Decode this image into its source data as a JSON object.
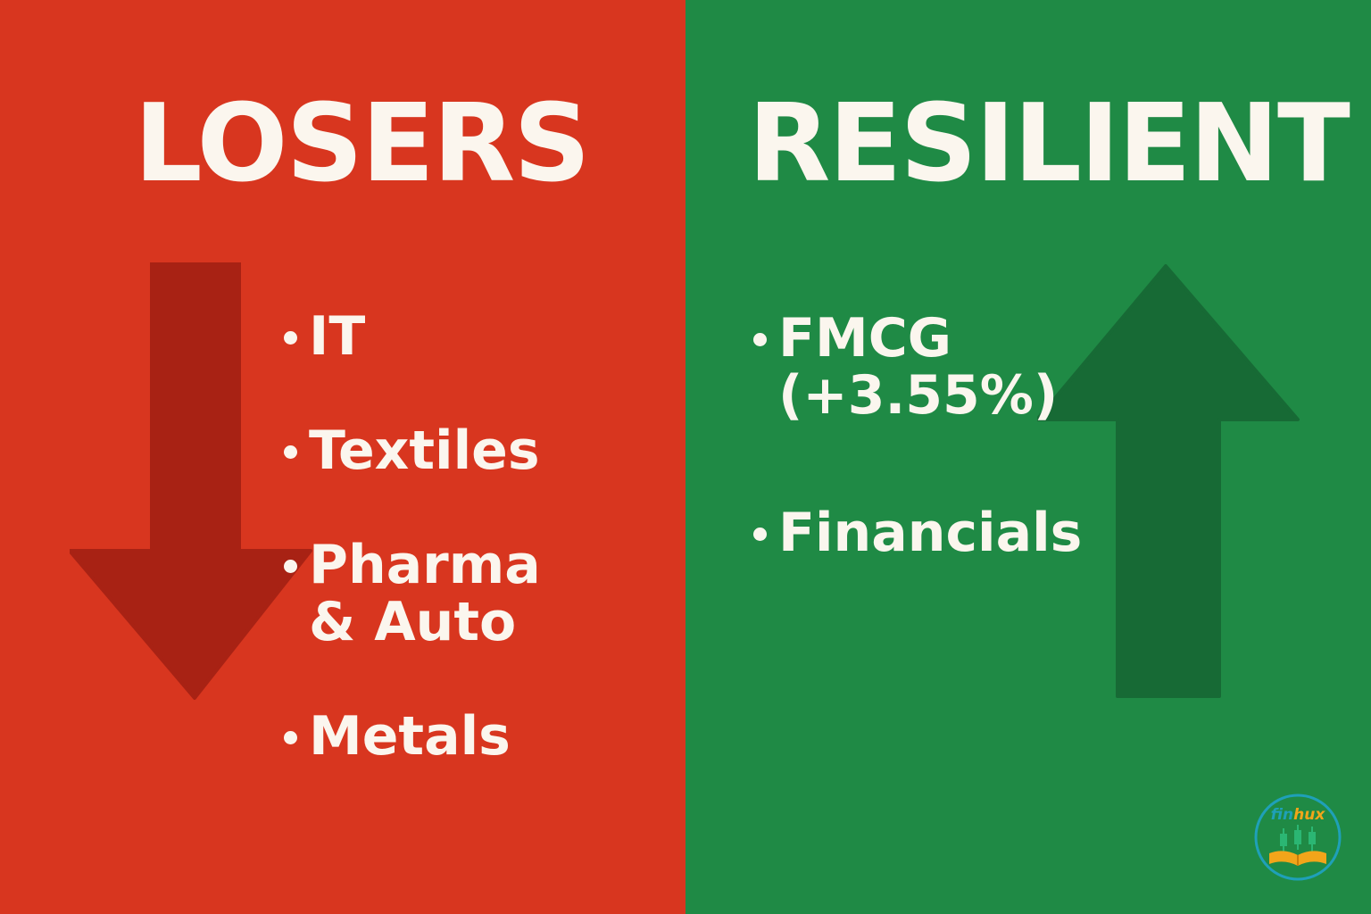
{
  "colors": {
    "losers_bg": "#d8361f",
    "resilient_bg": "#1f8a45",
    "text": "#fbf6ee"
  },
  "losers": {
    "title": "LOSERS",
    "arrow_icon": "arrow-down-icon",
    "items": [
      {
        "lines": [
          "IT"
        ]
      },
      {
        "lines": [
          "Textiles"
        ]
      },
      {
        "lines": [
          "Pharma",
          "& Auto"
        ]
      },
      {
        "lines": [
          "Metals"
        ]
      }
    ]
  },
  "resilient": {
    "title": "RESILIENT",
    "arrow_icon": "arrow-up-icon",
    "items": [
      {
        "lines": [
          "FMCG",
          "(+3.55%)"
        ]
      },
      {
        "lines": [
          "Financials"
        ]
      }
    ]
  },
  "logo": {
    "text": "finhux",
    "icon": "book-candlestick-icon"
  }
}
